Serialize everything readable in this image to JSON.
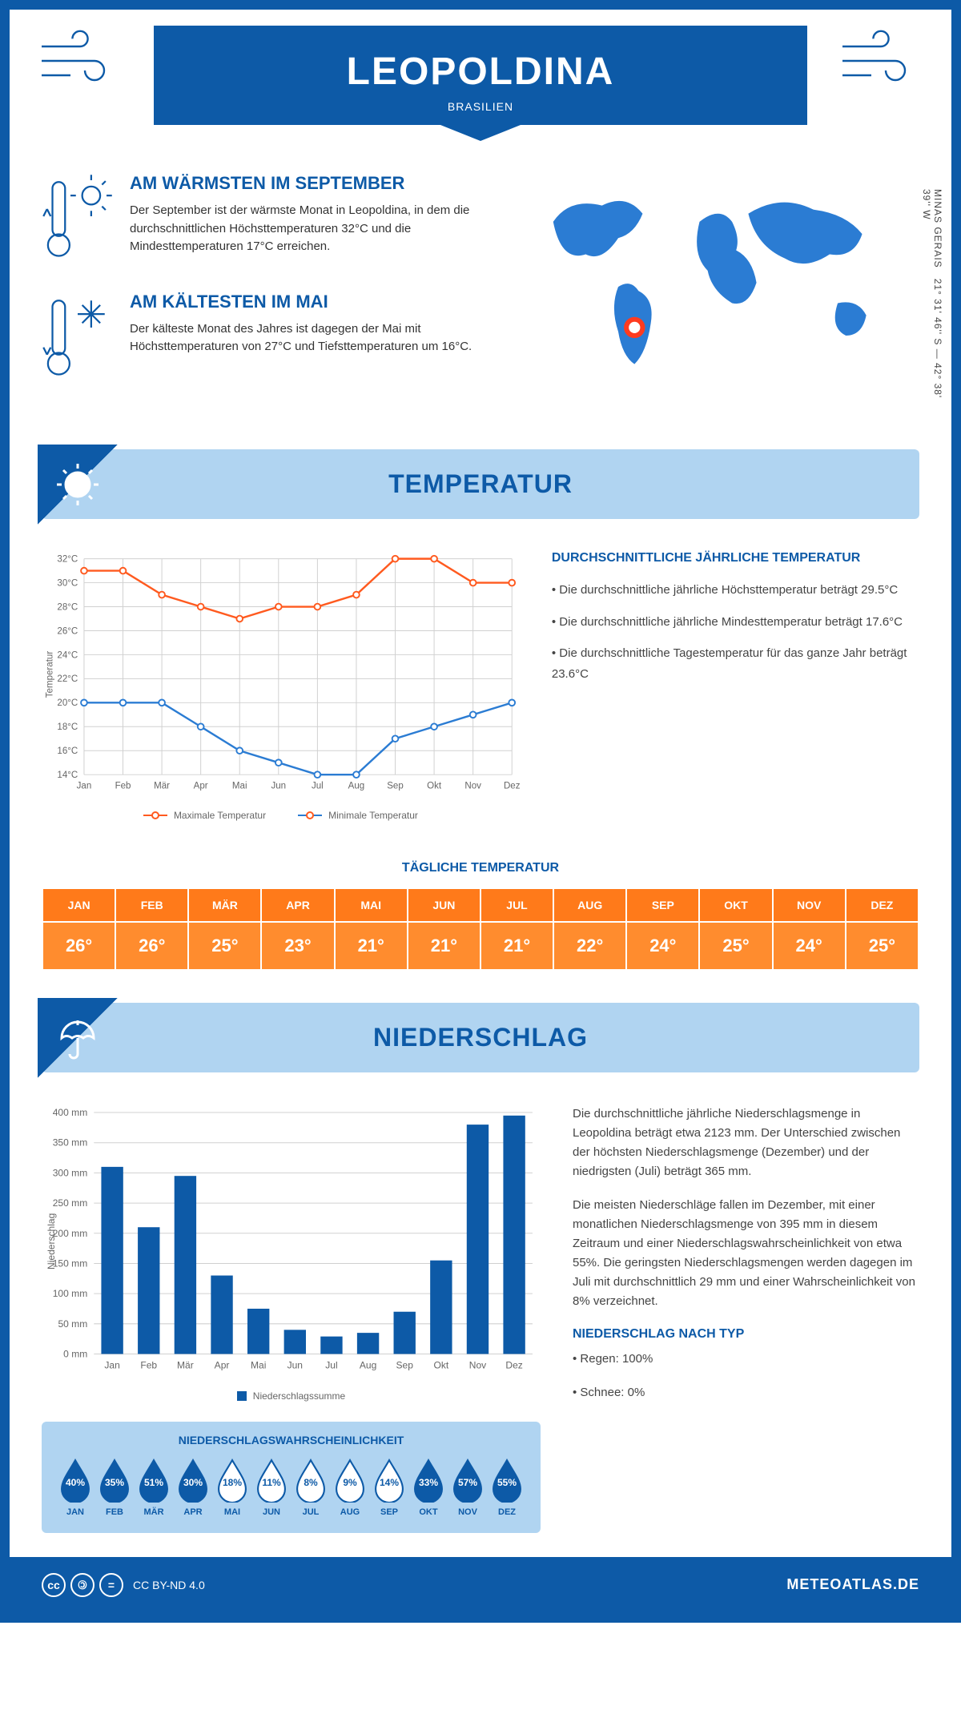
{
  "header": {
    "city": "LEOPOLDINA",
    "country": "BRASILIEN"
  },
  "coords": {
    "text": "21° 31' 46'' S — 42° 38' 39'' W",
    "region": "MINAS GERAIS"
  },
  "warmest": {
    "title": "AM WÄRMSTEN IM SEPTEMBER",
    "text": "Der September ist der wärmste Monat in Leopoldina, in dem die durchschnittlichen Höchsttemperaturen 32°C und die Mindesttemperaturen 17°C erreichen."
  },
  "coldest": {
    "title": "AM KÄLTESTEN IM MAI",
    "text": "Der kälteste Monat des Jahres ist dagegen der Mai mit Höchsttemperaturen von 27°C und Tiefsttemperaturen um 16°C."
  },
  "section_temp": "TEMPERATUR",
  "section_precip": "NIEDERSCHLAG",
  "months": [
    "Jan",
    "Feb",
    "Mär",
    "Apr",
    "Mai",
    "Jun",
    "Jul",
    "Aug",
    "Sep",
    "Okt",
    "Nov",
    "Dez"
  ],
  "months_upper": [
    "JAN",
    "FEB",
    "MÄR",
    "APR",
    "MAI",
    "JUN",
    "JUL",
    "AUG",
    "SEP",
    "OKT",
    "NOV",
    "DEZ"
  ],
  "temp_chart": {
    "ylabel": "Temperatur",
    "yticks": [
      "14°C",
      "16°C",
      "18°C",
      "20°C",
      "22°C",
      "24°C",
      "26°C",
      "28°C",
      "30°C",
      "32°C"
    ],
    "ymin": 14,
    "ymax": 32,
    "max_line_color": "#ff5a1f",
    "min_line_color": "#2b7cd3",
    "grid_color": "#d0d0d0",
    "max_values": [
      31,
      31,
      29,
      28,
      27,
      28,
      28,
      29,
      32,
      32,
      30,
      30
    ],
    "min_values": [
      20,
      20,
      20,
      18,
      16,
      15,
      14,
      14,
      17,
      18,
      19,
      20
    ],
    "legend_max": "Maximale Temperatur",
    "legend_min": "Minimale Temperatur"
  },
  "temp_desc": {
    "title": "DURCHSCHNITTLICHE JÄHRLICHE TEMPERATUR",
    "bullets": [
      "• Die durchschnittliche jährliche Höchsttemperatur beträgt 29.5°C",
      "• Die durchschnittliche jährliche Mindesttemperatur beträgt 17.6°C",
      "• Die durchschnittliche Tagestemperatur für das ganze Jahr beträgt 23.6°C"
    ]
  },
  "daily_title": "TÄGLICHE TEMPERATUR",
  "daily_values": [
    "26°",
    "26°",
    "25°",
    "23°",
    "21°",
    "21°",
    "21°",
    "22°",
    "24°",
    "25°",
    "24°",
    "25°"
  ],
  "precip_chart": {
    "ylabel": "Niederschlag",
    "ymin": 0,
    "ymax": 400,
    "ystep": 50,
    "yticks": [
      "0 mm",
      "50 mm",
      "100 mm",
      "150 mm",
      "200 mm",
      "250 mm",
      "300 mm",
      "350 mm",
      "400 mm"
    ],
    "bar_color": "#0d5aa7",
    "grid_color": "#d0d0d0",
    "values": [
      310,
      210,
      295,
      130,
      75,
      40,
      29,
      35,
      70,
      155,
      380,
      395
    ],
    "legend": "Niederschlagssumme"
  },
  "precip_text": {
    "p1": "Die durchschnittliche jährliche Niederschlagsmenge in Leopoldina beträgt etwa 2123 mm. Der Unterschied zwischen der höchsten Niederschlagsmenge (Dezember) und der niedrigsten (Juli) beträgt 365 mm.",
    "p2": "Die meisten Niederschläge fallen im Dezember, mit einer monatlichen Niederschlagsmenge von 395 mm in diesem Zeitraum und einer Niederschlagswahrscheinlichkeit von etwa 55%. Die geringsten Niederschlagsmengen werden dagegen im Juli mit durchschnittlich 29 mm und einer Wahrscheinlichkeit von 8% verzeichnet.",
    "type_title": "NIEDERSCHLAG NACH TYP",
    "type_rain": "• Regen: 100%",
    "type_snow": "• Schnee: 0%"
  },
  "prob": {
    "title": "NIEDERSCHLAGSWAHRSCHEINLICHKEIT",
    "values": [
      40,
      35,
      51,
      30,
      18,
      11,
      8,
      9,
      14,
      33,
      57,
      55
    ],
    "dark_color": "#0d5aa7",
    "light_color": "#ffffff"
  },
  "footer": {
    "license": "CC BY-ND 4.0",
    "brand": "METEOATLAS.DE"
  },
  "colors": {
    "primary": "#0d5aa7",
    "light": "#b0d4f1",
    "orange_header": "#ff7a1a",
    "orange_cell": "#ff8c2e"
  }
}
